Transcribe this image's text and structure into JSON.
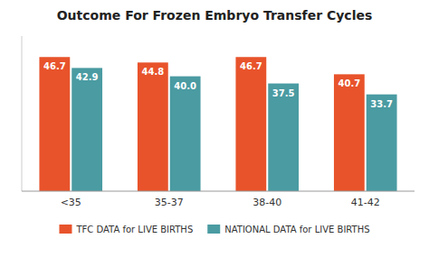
{
  "chart_data": {
    "type": "bar",
    "title": "Outcome For Frozen Embryo Transfer Cycles",
    "categories": [
      "<35",
      "35-37",
      "38-40",
      "41-42"
    ],
    "series": [
      {
        "name": "TFC DATA for LIVE BIRTHS",
        "color": "#E8532B",
        "values": [
          46.7,
          44.8,
          46.7,
          40.7
        ]
      },
      {
        "name": "NATIONAL DATA for LIVE BIRTHS",
        "color": "#4A9BA2",
        "values": [
          42.9,
          40.0,
          37.5,
          33.7
        ],
        "value_labels": [
          "42.9",
          "40.0",
          "37.5",
          "33.7"
        ]
      }
    ],
    "ylim": [
      0,
      54
    ],
    "grid": false,
    "legend": "bottom",
    "data_labels": true,
    "tick_labels": "x"
  }
}
